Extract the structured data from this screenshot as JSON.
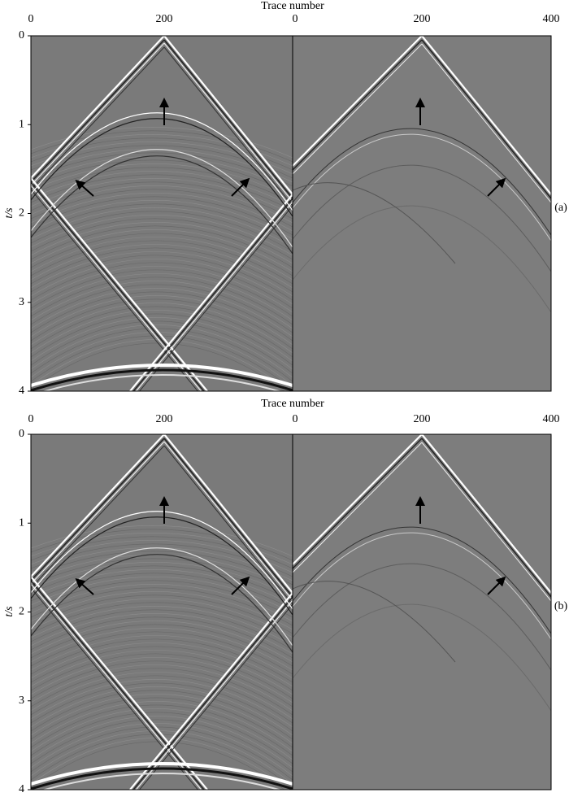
{
  "panels": [
    {
      "label": "(a)",
      "x_label": "Trace number",
      "y_label": "t/s",
      "left_x_ticks": [
        0,
        200
      ],
      "right_x_ticks": [
        0,
        200,
        400
      ],
      "y_ticks": [
        0,
        1,
        2,
        3,
        4
      ]
    },
    {
      "label": "(b)",
      "x_label": "Trace number",
      "y_label": "t/s",
      "left_x_ticks": [
        0,
        200
      ],
      "right_x_ticks": [
        0,
        200,
        400
      ],
      "y_ticks": [
        0,
        1,
        2,
        3,
        4
      ]
    }
  ]
}
